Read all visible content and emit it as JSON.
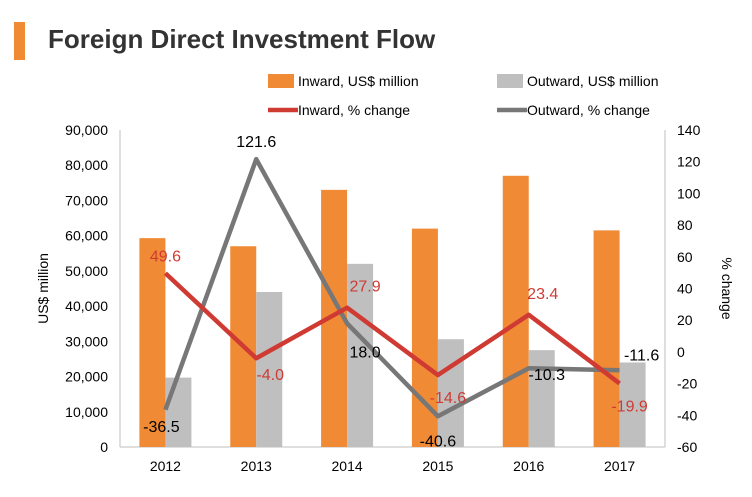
{
  "chart_data": {
    "type": "bar+line",
    "title": "Foreign Direct Investment Flow",
    "categories": [
      "2012",
      "2013",
      "2014",
      "2015",
      "2016",
      "2017"
    ],
    "bar_series": [
      {
        "name": "Inward, US$ million",
        "color": "#f08a35",
        "values": [
          59300,
          57000,
          73000,
          62000,
          77000,
          61500
        ]
      },
      {
        "name": "Outward, US$ million",
        "color": "#bfbfbf",
        "values": [
          19700,
          44000,
          52000,
          30600,
          27500,
          24000
        ]
      }
    ],
    "line_series": [
      {
        "name": "Inward, % change",
        "color": "#cf3b33",
        "values": [
          49.6,
          -4.0,
          27.9,
          -14.6,
          23.4,
          -19.9
        ],
        "labels": [
          "49.6",
          "-4.0",
          "27.9",
          "-14.6",
          "23.4",
          "-19.9"
        ]
      },
      {
        "name": "Outward, % change",
        "color": "#777777",
        "values": [
          -36.5,
          121.6,
          18.0,
          -40.6,
          -10.3,
          -11.6
        ],
        "labels": [
          "-36.5",
          "121.6",
          "18.0",
          "-40.6",
          "-10.3",
          "-11.6"
        ]
      }
    ],
    "ylabel": "US$ million",
    "y2label": "% change",
    "ylim": [
      0,
      90000
    ],
    "y2lim": [
      -60,
      140
    ],
    "yticks": [
      0,
      10000,
      20000,
      30000,
      40000,
      50000,
      60000,
      70000,
      80000,
      90000
    ],
    "ytick_labels": [
      "0",
      "10,000",
      "20,000",
      "30,000",
      "40,000",
      "50,000",
      "60,000",
      "70,000",
      "80,000",
      "90,000"
    ],
    "y2ticks": [
      -60,
      -40,
      -20,
      0,
      20,
      40,
      60,
      80,
      100,
      120,
      140
    ],
    "y2tick_labels": [
      "-60",
      "-40",
      "-20",
      "0",
      "20",
      "40",
      "60",
      "80",
      "100",
      "120",
      "140"
    ],
    "legend_position": "top",
    "grid": false
  }
}
